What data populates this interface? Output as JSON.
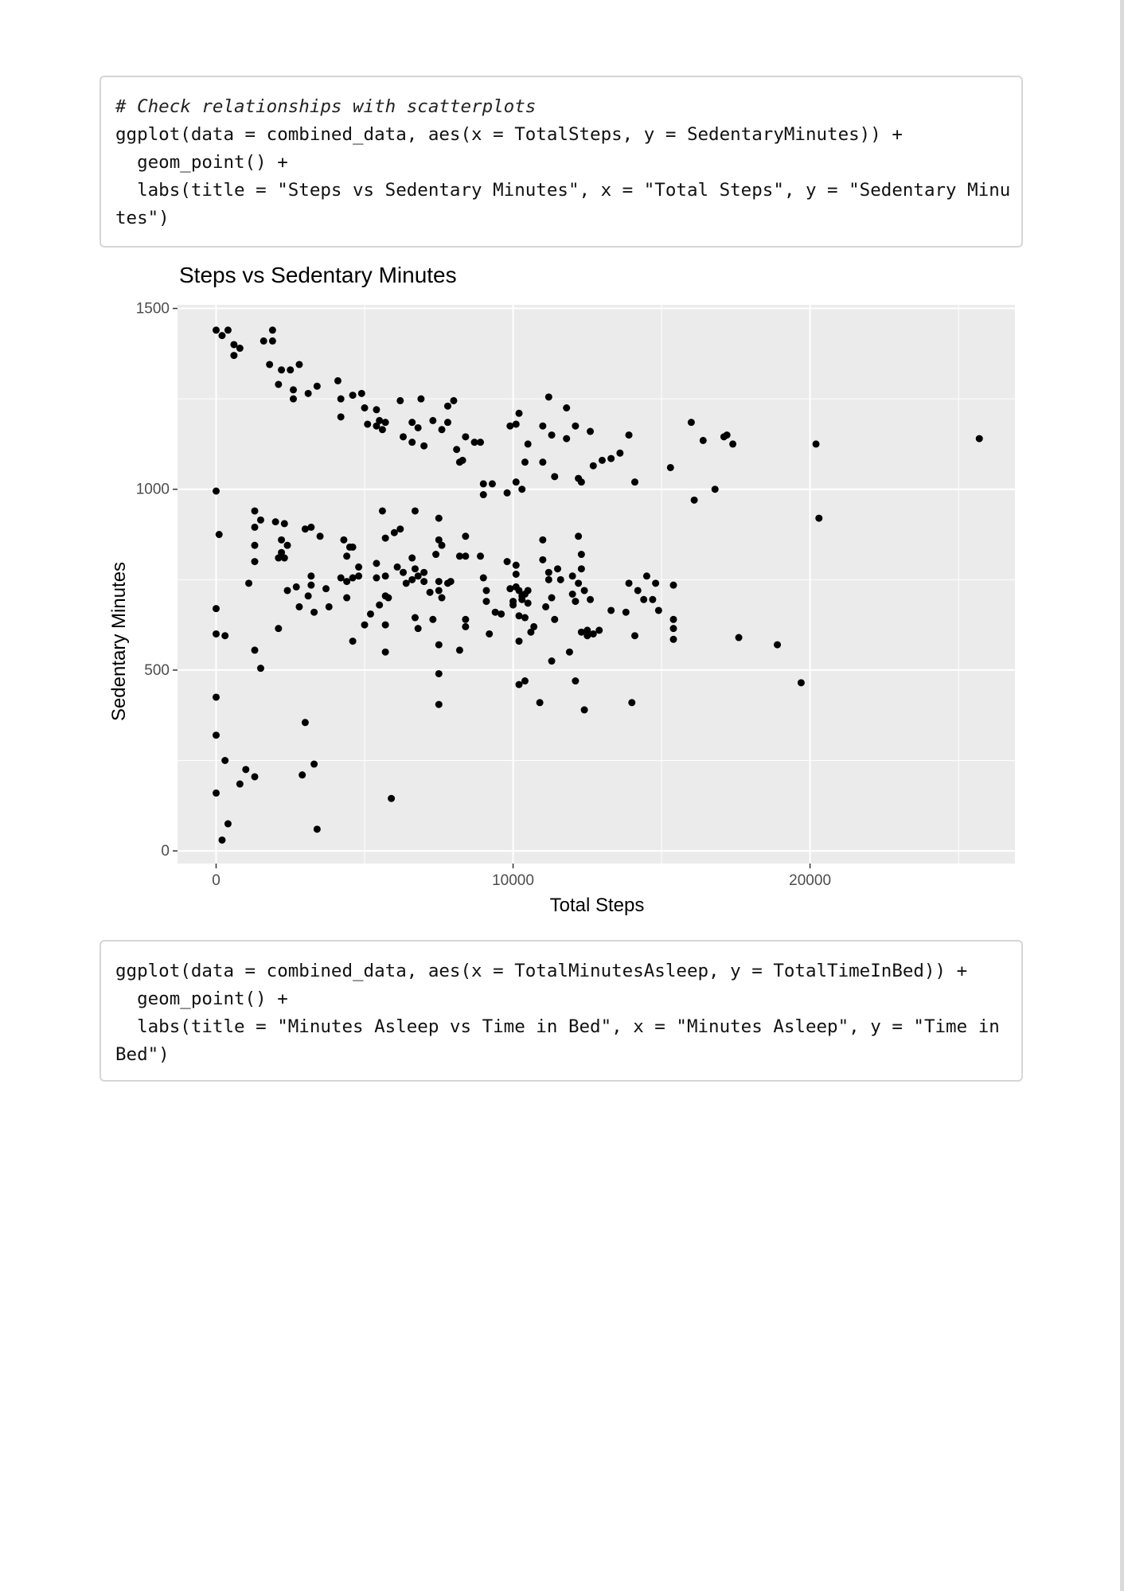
{
  "code_blocks": [
    {
      "lines": [
        {
          "text": "# Check relationships with scatterplots",
          "comment": true
        },
        {
          "text": "ggplot(data = combined_data, aes(x = TotalSteps, y = SedentaryMinutes)) +",
          "comment": false
        },
        {
          "text": "  geom_point() +",
          "comment": false
        },
        {
          "text": "  labs(title = \"Steps vs Sedentary Minutes\", x = \"Total Steps\", y = \"Sedentary Minu",
          "comment": false
        },
        {
          "text": "tes\")",
          "comment": false
        }
      ]
    },
    {
      "lines": [
        {
          "text": "ggplot(data = combined_data, aes(x = TotalMinutesAsleep, y = TotalTimeInBed)) +",
          "comment": false
        },
        {
          "text": "  geom_point() +",
          "comment": false
        },
        {
          "text": "  labs(title = \"Minutes Asleep vs Time in Bed\", x = \"Minutes Asleep\", y = \"Time in",
          "comment": false
        },
        {
          "text": "Bed\")",
          "comment": false
        }
      ]
    }
  ],
  "chart_data": {
    "type": "scatter",
    "title": "Steps vs Sedentary Minutes",
    "xlabel": "Total Steps",
    "ylabel": "Sedentary Minutes",
    "xlim": [
      -1300,
      26900
    ],
    "ylim": [
      -35,
      1510
    ],
    "xticks": [
      0,
      10000,
      20000
    ],
    "xtick_labels": [
      "0",
      "10000",
      "20000"
    ],
    "yticks": [
      0,
      500,
      1000,
      1500
    ],
    "ytick_labels": [
      "0",
      "500",
      "1000",
      "1500"
    ],
    "grid": true,
    "panel_color": "#ebebeb",
    "point_color": "#000000",
    "points": [
      [
        0,
        1440
      ],
      [
        200,
        1425
      ],
      [
        400,
        1440
      ],
      [
        600,
        1400
      ],
      [
        600,
        1370
      ],
      [
        800,
        1390
      ],
      [
        1600,
        1410
      ],
      [
        1900,
        1440
      ],
      [
        1900,
        1410
      ],
      [
        1800,
        1345
      ],
      [
        2200,
        1330
      ],
      [
        2500,
        1330
      ],
      [
        2800,
        1345
      ],
      [
        2100,
        1290
      ],
      [
        2600,
        1275
      ],
      [
        2600,
        1250
      ],
      [
        3100,
        1265
      ],
      [
        3400,
        1285
      ],
      [
        4100,
        1300
      ],
      [
        4200,
        1250
      ],
      [
        4600,
        1260
      ],
      [
        4900,
        1265
      ],
      [
        4200,
        1200
      ],
      [
        5000,
        1225
      ],
      [
        5400,
        1220
      ],
      [
        5100,
        1180
      ],
      [
        5400,
        1175
      ],
      [
        5500,
        1190
      ],
      [
        5700,
        1185
      ],
      [
        5600,
        1165
      ],
      [
        6200,
        1245
      ],
      [
        6300,
        1145
      ],
      [
        6600,
        1185
      ],
      [
        6600,
        1130
      ],
      [
        6900,
        1250
      ],
      [
        6800,
        1170
      ],
      [
        7000,
        1120
      ],
      [
        7300,
        1190
      ],
      [
        7600,
        1165
      ],
      [
        7800,
        1185
      ],
      [
        7800,
        1230
      ],
      [
        8000,
        1245
      ],
      [
        8100,
        1110
      ],
      [
        8400,
        1145
      ],
      [
        8300,
        1080
      ],
      [
        8200,
        1075
      ],
      [
        8700,
        1130
      ],
      [
        8900,
        1130
      ],
      [
        9000,
        1015
      ],
      [
        9000,
        985
      ],
      [
        9300,
        1015
      ],
      [
        9800,
        990
      ],
      [
        9900,
        1175
      ],
      [
        10100,
        1180
      ],
      [
        10200,
        1210
      ],
      [
        10100,
        1020
      ],
      [
        10300,
        1000
      ],
      [
        10400,
        1075
      ],
      [
        10500,
        1125
      ],
      [
        11000,
        1175
      ],
      [
        11200,
        1255
      ],
      [
        11300,
        1150
      ],
      [
        11000,
        1075
      ],
      [
        11400,
        1035
      ],
      [
        11800,
        1225
      ],
      [
        11800,
        1140
      ],
      [
        12100,
        1175
      ],
      [
        12300,
        1020
      ],
      [
        12600,
        1160
      ],
      [
        12200,
        1030
      ],
      [
        12700,
        1065
      ],
      [
        13000,
        1080
      ],
      [
        13300,
        1085
      ],
      [
        13600,
        1100
      ],
      [
        13900,
        1150
      ],
      [
        14100,
        1020
      ],
      [
        15300,
        1060
      ],
      [
        16000,
        1185
      ],
      [
        16100,
        970
      ],
      [
        16400,
        1135
      ],
      [
        16800,
        1000
      ],
      [
        17100,
        1145
      ],
      [
        17200,
        1150
      ],
      [
        17400,
        1125
      ],
      [
        20200,
        1125
      ],
      [
        25700,
        1140
      ],
      [
        0,
        995
      ],
      [
        100,
        875
      ],
      [
        0,
        670
      ],
      [
        0,
        600
      ],
      [
        300,
        595
      ],
      [
        1100,
        740
      ],
      [
        1300,
        940
      ],
      [
        1300,
        895
      ],
      [
        1300,
        845
      ],
      [
        1300,
        800
      ],
      [
        1500,
        915
      ],
      [
        2000,
        910
      ],
      [
        2300,
        905
      ],
      [
        2200,
        860
      ],
      [
        2200,
        825
      ],
      [
        2300,
        810
      ],
      [
        2100,
        810
      ],
      [
        2400,
        845
      ],
      [
        2400,
        720
      ],
      [
        2100,
        615
      ],
      [
        2700,
        730
      ],
      [
        2800,
        675
      ],
      [
        3000,
        890
      ],
      [
        3200,
        895
      ],
      [
        3200,
        760
      ],
      [
        3200,
        735
      ],
      [
        3100,
        705
      ],
      [
        3300,
        660
      ],
      [
        3500,
        870
      ],
      [
        3700,
        725
      ],
      [
        3800,
        675
      ],
      [
        4200,
        755
      ],
      [
        4300,
        860
      ],
      [
        4400,
        745
      ],
      [
        4400,
        700
      ],
      [
        4500,
        840
      ],
      [
        4400,
        815
      ],
      [
        4600,
        840
      ],
      [
        4600,
        755
      ],
      [
        4800,
        785
      ],
      [
        4800,
        760
      ],
      [
        4600,
        580
      ],
      [
        5000,
        625
      ],
      [
        5200,
        655
      ],
      [
        5400,
        795
      ],
      [
        5400,
        755
      ],
      [
        5500,
        680
      ],
      [
        5600,
        940
      ],
      [
        5700,
        865
      ],
      [
        5700,
        760
      ],
      [
        5700,
        705
      ],
      [
        5700,
        625
      ],
      [
        5700,
        550
      ],
      [
        5800,
        700
      ],
      [
        6000,
        880
      ],
      [
        6100,
        785
      ],
      [
        6200,
        890
      ],
      [
        6300,
        770
      ],
      [
        6400,
        740
      ],
      [
        6600,
        810
      ],
      [
        6600,
        750
      ],
      [
        6700,
        780
      ],
      [
        6700,
        940
      ],
      [
        6800,
        760
      ],
      [
        6700,
        645
      ],
      [
        6800,
        615
      ],
      [
        7000,
        770
      ],
      [
        7000,
        745
      ],
      [
        7200,
        715
      ],
      [
        7300,
        640
      ],
      [
        7400,
        820
      ],
      [
        7500,
        920
      ],
      [
        7500,
        860
      ],
      [
        7500,
        745
      ],
      [
        7500,
        720
      ],
      [
        7500,
        570
      ],
      [
        7500,
        490
      ],
      [
        7500,
        405
      ],
      [
        7600,
        845
      ],
      [
        7600,
        700
      ],
      [
        7800,
        740
      ],
      [
        7900,
        745
      ],
      [
        8200,
        815
      ],
      [
        8200,
        555
      ],
      [
        8400,
        870
      ],
      [
        8400,
        815
      ],
      [
        8400,
        640
      ],
      [
        8400,
        620
      ],
      [
        8900,
        815
      ],
      [
        9000,
        755
      ],
      [
        9100,
        720
      ],
      [
        9100,
        690
      ],
      [
        9200,
        600
      ],
      [
        9400,
        660
      ],
      [
        9600,
        655
      ],
      [
        9800,
        800
      ],
      [
        9900,
        725
      ],
      [
        10000,
        690
      ],
      [
        10000,
        680
      ],
      [
        10100,
        790
      ],
      [
        10100,
        765
      ],
      [
        10100,
        730
      ],
      [
        10200,
        720
      ],
      [
        10200,
        580
      ],
      [
        10200,
        460
      ],
      [
        10200,
        650
      ],
      [
        10300,
        705
      ],
      [
        10300,
        695
      ],
      [
        10400,
        710
      ],
      [
        10500,
        685
      ],
      [
        10400,
        645
      ],
      [
        10400,
        470
      ],
      [
        10500,
        720
      ],
      [
        10600,
        605
      ],
      [
        10700,
        620
      ],
      [
        10900,
        410
      ],
      [
        11000,
        860
      ],
      [
        11000,
        805
      ],
      [
        11100,
        675
      ],
      [
        11200,
        770
      ],
      [
        11200,
        750
      ],
      [
        11300,
        700
      ],
      [
        11300,
        525
      ],
      [
        11400,
        640
      ],
      [
        11500,
        780
      ],
      [
        11600,
        750
      ],
      [
        11900,
        550
      ],
      [
        12000,
        760
      ],
      [
        12000,
        710
      ],
      [
        12100,
        690
      ],
      [
        12100,
        470
      ],
      [
        12200,
        870
      ],
      [
        12300,
        820
      ],
      [
        12300,
        780
      ],
      [
        12200,
        740
      ],
      [
        12400,
        720
      ],
      [
        12500,
        610
      ],
      [
        12500,
        595
      ],
      [
        12300,
        605
      ],
      [
        12400,
        390
      ],
      [
        12600,
        695
      ],
      [
        12700,
        600
      ],
      [
        12900,
        610
      ],
      [
        13300,
        665
      ],
      [
        13800,
        660
      ],
      [
        13900,
        740
      ],
      [
        14000,
        410
      ],
      [
        14100,
        595
      ],
      [
        14200,
        720
      ],
      [
        14400,
        695
      ],
      [
        14500,
        760
      ],
      [
        14700,
        695
      ],
      [
        14800,
        740
      ],
      [
        14900,
        665
      ],
      [
        15400,
        735
      ],
      [
        15400,
        640
      ],
      [
        15400,
        615
      ],
      [
        15400,
        585
      ],
      [
        17600,
        590
      ],
      [
        18900,
        570
      ],
      [
        19700,
        465
      ],
      [
        20300,
        920
      ],
      [
        0,
        425
      ],
      [
        0,
        320
      ],
      [
        0,
        160
      ],
      [
        200,
        30
      ],
      [
        300,
        250
      ],
      [
        400,
        75
      ],
      [
        800,
        185
      ],
      [
        1000,
        225
      ],
      [
        1300,
        205
      ],
      [
        1500,
        505
      ],
      [
        1300,
        555
      ],
      [
        2900,
        210
      ],
      [
        3000,
        355
      ],
      [
        3300,
        240
      ],
      [
        3400,
        60
      ],
      [
        5900,
        145
      ]
    ]
  }
}
